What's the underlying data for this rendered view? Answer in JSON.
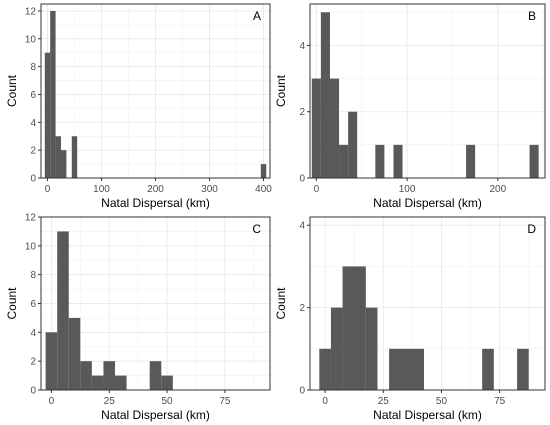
{
  "chart_data": [
    {
      "type": "bar",
      "panel_label": "A",
      "xlabel": "Natal Dispersal (km)",
      "ylabel": "Count",
      "xlim": [
        -12,
        412
      ],
      "ylim": [
        0,
        12.5
      ],
      "xticks": [
        0,
        100,
        200,
        300,
        400
      ],
      "yticks": [
        0,
        2,
        4,
        6,
        8,
        10,
        12
      ],
      "grid": true,
      "bars": [
        {
          "x0": -5,
          "x1": 5,
          "value": 9
        },
        {
          "x0": 5,
          "x1": 15,
          "value": 12
        },
        {
          "x0": 15,
          "x1": 25,
          "value": 3
        },
        {
          "x0": 25,
          "x1": 35,
          "value": 2
        },
        {
          "x0": 45,
          "x1": 55,
          "value": 3
        },
        {
          "x0": 395,
          "x1": 405,
          "value": 1
        }
      ]
    },
    {
      "type": "bar",
      "panel_label": "B",
      "xlabel": "Natal Dispersal (km)",
      "ylabel": "Count",
      "xlim": [
        -7,
        252
      ],
      "ylim": [
        0,
        5.25
      ],
      "xticks": [
        0,
        100,
        200
      ],
      "yticks": [
        0,
        2,
        4
      ],
      "grid": true,
      "bars": [
        {
          "x0": -5,
          "x1": 5,
          "value": 3
        },
        {
          "x0": 5,
          "x1": 15,
          "value": 5
        },
        {
          "x0": 15,
          "x1": 25,
          "value": 3
        },
        {
          "x0": 25,
          "x1": 35,
          "value": 1
        },
        {
          "x0": 35,
          "x1": 45,
          "value": 2
        },
        {
          "x0": 65,
          "x1": 75,
          "value": 1
        },
        {
          "x0": 85,
          "x1": 95,
          "value": 1
        },
        {
          "x0": 165,
          "x1": 175,
          "value": 1
        },
        {
          "x0": 235,
          "x1": 245,
          "value": 1
        }
      ]
    },
    {
      "type": "bar",
      "panel_label": "C",
      "xlabel": "Natal Dispersal (km)",
      "ylabel": "Count",
      "xlim": [
        -4.5,
        94.5
      ],
      "ylim": [
        0,
        12
      ],
      "xticks": [
        0,
        25,
        50,
        75
      ],
      "yticks": [
        0,
        2,
        4,
        6,
        8,
        10,
        12
      ],
      "grid": true,
      "bars": [
        {
          "x0": -2.5,
          "x1": 2.5,
          "value": 4
        },
        {
          "x0": 2.5,
          "x1": 7.5,
          "value": 11
        },
        {
          "x0": 7.5,
          "x1": 12.5,
          "value": 5
        },
        {
          "x0": 12.5,
          "x1": 17.5,
          "value": 2
        },
        {
          "x0": 17.5,
          "x1": 22.5,
          "value": 1
        },
        {
          "x0": 22.5,
          "x1": 27.5,
          "value": 2
        },
        {
          "x0": 27.5,
          "x1": 32.5,
          "value": 1
        },
        {
          "x0": 42.5,
          "x1": 47.5,
          "value": 2
        },
        {
          "x0": 47.5,
          "x1": 52.5,
          "value": 1
        }
      ]
    },
    {
      "type": "bar",
      "panel_label": "D",
      "xlabel": "Natal Dispersal (km)",
      "ylabel": "Count",
      "xlim": [
        -6.5,
        94.5
      ],
      "ylim": [
        0,
        4.2
      ],
      "xticks": [
        0,
        25,
        50,
        75
      ],
      "yticks": [
        0,
        2,
        4
      ],
      "grid": true,
      "bars": [
        {
          "x0": -2.5,
          "x1": 2.5,
          "value": 1
        },
        {
          "x0": 2.5,
          "x1": 7.5,
          "value": 2
        },
        {
          "x0": 7.5,
          "x1": 17.5,
          "value": 3
        },
        {
          "x0": 17.5,
          "x1": 22.5,
          "value": 2
        },
        {
          "x0": 27.5,
          "x1": 42.5,
          "value": 1
        },
        {
          "x0": 67.5,
          "x1": 72.5,
          "value": 1
        },
        {
          "x0": 82.5,
          "x1": 87.5,
          "value": 1
        }
      ]
    }
  ]
}
